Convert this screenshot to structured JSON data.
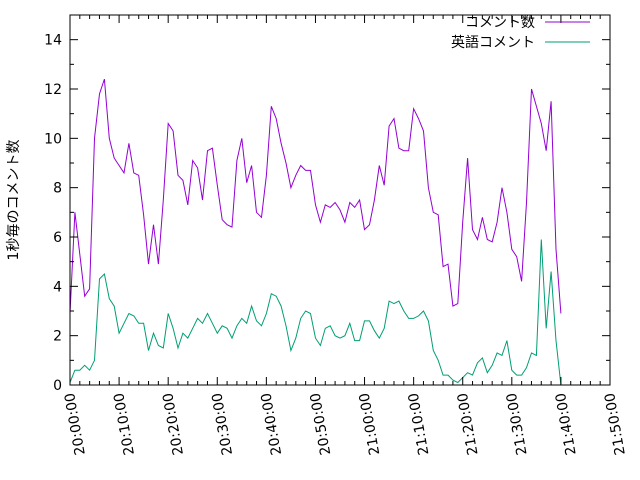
{
  "chart_data": {
    "type": "line",
    "title": "",
    "xlabel": "",
    "ylabel": "1秒毎のコメント数",
    "ylim": [
      0,
      15
    ],
    "yticks": [
      "0",
      "2",
      "4",
      "6",
      "8",
      "10",
      "12",
      "14"
    ],
    "xlim": [
      "20:00:00",
      "21:50:00"
    ],
    "xticks": [
      "20:00:00",
      "20:10:00",
      "20:20:00",
      "20:30:00",
      "20:40:00",
      "20:50:00",
      "21:00:00",
      "21:10:00",
      "21:20:00",
      "21:30:00",
      "21:40:00",
      "21:50:00"
    ],
    "grid": false,
    "legend_position": "top-right",
    "x": [
      "20:00:00",
      "20:01:00",
      "20:02:00",
      "20:03:00",
      "20:04:00",
      "20:05:00",
      "20:06:00",
      "20:07:00",
      "20:08:00",
      "20:09:00",
      "20:10:00",
      "20:11:00",
      "20:12:00",
      "20:13:00",
      "20:14:00",
      "20:15:00",
      "20:16:00",
      "20:17:00",
      "20:18:00",
      "20:19:00",
      "20:20:00",
      "20:21:00",
      "20:22:00",
      "20:23:00",
      "20:24:00",
      "20:25:00",
      "20:26:00",
      "20:27:00",
      "20:28:00",
      "20:29:00",
      "20:30:00",
      "20:31:00",
      "20:32:00",
      "20:33:00",
      "20:34:00",
      "20:35:00",
      "20:36:00",
      "20:37:00",
      "20:38:00",
      "20:39:00",
      "20:40:00",
      "20:41:00",
      "20:42:00",
      "20:43:00",
      "20:44:00",
      "20:45:00",
      "20:46:00",
      "20:47:00",
      "20:48:00",
      "20:49:00",
      "20:50:00",
      "20:51:00",
      "20:52:00",
      "20:53:00",
      "20:54:00",
      "20:55:00",
      "20:56:00",
      "20:57:00",
      "20:58:00",
      "20:59:00",
      "21:00:00",
      "21:01:00",
      "21:02:00",
      "21:03:00",
      "21:04:00",
      "21:05:00",
      "21:06:00",
      "21:07:00",
      "21:08:00",
      "21:09:00",
      "21:10:00",
      "21:11:00",
      "21:12:00",
      "21:13:00",
      "21:14:00",
      "21:15:00",
      "21:16:00",
      "21:17:00",
      "21:18:00",
      "21:19:00",
      "21:20:00",
      "21:21:00",
      "21:22:00",
      "21:23:00",
      "21:24:00",
      "21:25:00",
      "21:26:00",
      "21:27:00",
      "21:28:00",
      "21:29:00",
      "21:30:00",
      "21:31:00",
      "21:32:00",
      "21:33:00",
      "21:34:00",
      "21:35:00",
      "21:36:00",
      "21:37:00",
      "21:38:00",
      "21:39:00",
      "21:40:00"
    ],
    "series": [
      {
        "name": "コメント数",
        "color": "#9400d3",
        "values": [
          2.9,
          7.0,
          5.3,
          3.6,
          3.9,
          10.0,
          11.8,
          12.4,
          10.0,
          9.2,
          8.9,
          8.6,
          9.8,
          8.6,
          8.5,
          6.9,
          4.9,
          6.5,
          4.9,
          7.5,
          10.6,
          10.3,
          8.5,
          8.3,
          7.3,
          9.1,
          8.8,
          7.5,
          9.5,
          9.6,
          8.1,
          6.7,
          6.5,
          6.4,
          9.1,
          10.0,
          8.2,
          8.9,
          7.0,
          6.8,
          8.5,
          11.3,
          10.8,
          9.8,
          9.0,
          8.0,
          8.5,
          8.9,
          8.7,
          8.7,
          7.3,
          6.6,
          7.3,
          7.2,
          7.4,
          7.1,
          6.6,
          7.4,
          7.2,
          7.5,
          6.3,
          6.5,
          7.5,
          8.9,
          8.1,
          10.5,
          10.8,
          9.6,
          9.5,
          9.5,
          11.2,
          10.8,
          10.3,
          8.0,
          7.0,
          6.9,
          4.8,
          4.9,
          3.2,
          3.3,
          6.6,
          9.2,
          6.3,
          5.9,
          6.8,
          5.9,
          5.8,
          6.6,
          8.0,
          7.0,
          5.5,
          5.2,
          4.2,
          7.4,
          12.0,
          11.3,
          10.6,
          9.5,
          11.5,
          5.5,
          2.9
        ]
      },
      {
        "name": "英語コメント",
        "color": "#009e73",
        "values": [
          0.1,
          0.6,
          0.6,
          0.8,
          0.6,
          1.0,
          4.3,
          4.5,
          3.5,
          3.2,
          2.1,
          2.5,
          2.9,
          2.8,
          2.5,
          2.5,
          1.4,
          2.1,
          1.6,
          1.5,
          2.9,
          2.3,
          1.5,
          2.1,
          1.9,
          2.3,
          2.7,
          2.5,
          2.9,
          2.5,
          2.1,
          2.4,
          2.3,
          1.9,
          2.4,
          2.7,
          2.5,
          3.2,
          2.6,
          2.4,
          2.9,
          3.7,
          3.6,
          3.2,
          2.4,
          1.4,
          1.9,
          2.7,
          3.0,
          2.9,
          1.9,
          1.6,
          2.3,
          2.4,
          2.0,
          1.9,
          2.0,
          2.5,
          1.8,
          1.8,
          2.6,
          2.6,
          2.2,
          1.9,
          2.3,
          3.4,
          3.3,
          3.4,
          3.0,
          2.7,
          2.7,
          2.8,
          3.0,
          2.6,
          1.4,
          1.0,
          0.4,
          0.4,
          0.2,
          0.1,
          0.3,
          0.5,
          0.4,
          0.9,
          1.1,
          0.5,
          0.8,
          1.3,
          1.2,
          1.8,
          0.6,
          0.4,
          0.4,
          0.7,
          1.3,
          1.2,
          5.9,
          2.3,
          4.6,
          1.8,
          0.0
        ]
      }
    ]
  }
}
